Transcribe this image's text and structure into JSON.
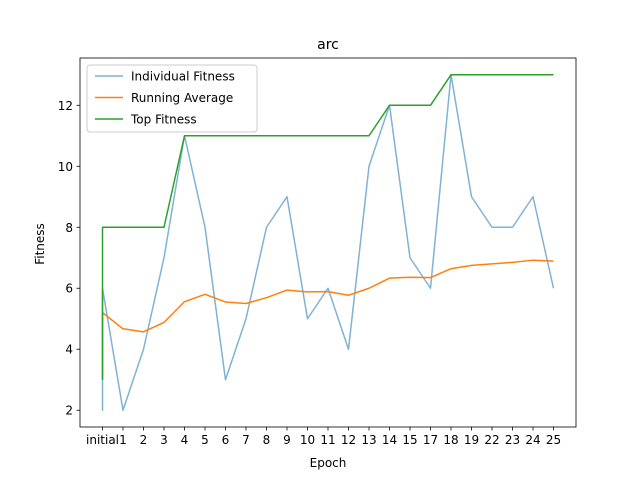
{
  "chart_data": {
    "type": "line",
    "title": "arc",
    "xlabel": "Epoch",
    "ylabel": "Fitness",
    "categories": [
      "initial",
      "1",
      "2",
      "3",
      "4",
      "5",
      "6",
      "7",
      "8",
      "9",
      "10",
      "11",
      "12",
      "13",
      "14",
      "15",
      "17",
      "18",
      "19",
      "22",
      "23",
      "24",
      "25"
    ],
    "ylim": [
      1.45,
      13.55
    ],
    "yticks": [
      2,
      4,
      6,
      8,
      10,
      12
    ],
    "legend_position": "top-left",
    "grid": false,
    "series": [
      {
        "name": "Individual Fitness",
        "color": "#7fb2d5",
        "points": [
          [
            0,
            6
          ],
          [
            0,
            5
          ],
          [
            0,
            2
          ],
          [
            0,
            3
          ],
          [
            0,
            6
          ],
          [
            1,
            2
          ],
          [
            2,
            4
          ],
          [
            3,
            7
          ],
          [
            4,
            11
          ],
          [
            5,
            8
          ],
          [
            6,
            3
          ],
          [
            7,
            5
          ],
          [
            8,
            8
          ],
          [
            9,
            9
          ],
          [
            10,
            5
          ],
          [
            11,
            6
          ],
          [
            12,
            4
          ],
          [
            13,
            10
          ],
          [
            14,
            12
          ],
          [
            15,
            7
          ],
          [
            16,
            6
          ],
          [
            17,
            13
          ],
          [
            18,
            9
          ],
          [
            19,
            8
          ],
          [
            20,
            8
          ],
          [
            21,
            9
          ],
          [
            22,
            6
          ]
        ]
      },
      {
        "name": "Running Average",
        "color": "#ff7f0e",
        "points": [
          [
            0,
            3
          ],
          [
            0,
            4.5
          ],
          [
            0,
            5.2
          ],
          [
            1,
            4.67
          ],
          [
            2,
            4.57
          ],
          [
            3,
            4.88
          ],
          [
            4,
            5.56
          ],
          [
            5,
            5.8
          ],
          [
            6,
            5.55
          ],
          [
            7,
            5.5
          ],
          [
            8,
            5.69
          ],
          [
            9,
            5.94
          ],
          [
            10,
            5.88
          ],
          [
            11,
            5.89
          ],
          [
            12,
            5.77
          ],
          [
            13,
            6.0
          ],
          [
            14,
            6.33
          ],
          [
            15,
            6.36
          ],
          [
            16,
            6.35
          ],
          [
            17,
            6.64
          ],
          [
            18,
            6.75
          ],
          [
            19,
            6.8
          ],
          [
            20,
            6.85
          ],
          [
            21,
            6.92
          ],
          [
            22,
            6.89
          ]
        ]
      },
      {
        "name": "Top Fitness",
        "color": "#2ca02c",
        "points": [
          [
            0,
            3
          ],
          [
            0,
            6
          ],
          [
            0,
            8
          ],
          [
            1,
            8
          ],
          [
            2,
            8
          ],
          [
            3,
            8
          ],
          [
            4,
            11
          ],
          [
            5,
            11
          ],
          [
            6,
            11
          ],
          [
            7,
            11
          ],
          [
            8,
            11
          ],
          [
            9,
            11
          ],
          [
            10,
            11
          ],
          [
            11,
            11
          ],
          [
            12,
            11
          ],
          [
            13,
            11
          ],
          [
            14,
            12
          ],
          [
            15,
            12
          ],
          [
            16,
            12
          ],
          [
            17,
            13
          ],
          [
            18,
            13
          ],
          [
            19,
            13
          ],
          [
            20,
            13
          ],
          [
            21,
            13
          ],
          [
            22,
            13
          ]
        ]
      }
    ]
  }
}
